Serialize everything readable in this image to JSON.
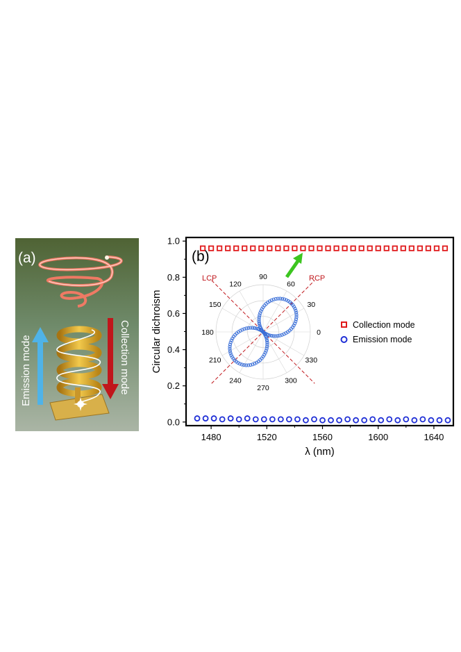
{
  "panel_a": {
    "label": "(a)",
    "emission_label": "Emission mode",
    "collection_label": "Collection mode",
    "colors": {
      "emission_arrow": "#4fb3e8",
      "collection_arrow": "#c0161b",
      "helix": "#d9a51f",
      "spiral": "#ff6a55"
    }
  },
  "chart_data": {
    "type": "scatter",
    "panel_label": "(b)",
    "xlabel": "λ (nm)",
    "ylabel": "Circular dichroism",
    "xlim": [
      1462,
      1654
    ],
    "ylim": [
      -0.02,
      1.02
    ],
    "xticks": [
      1480,
      1520,
      1560,
      1600,
      1640
    ],
    "yticks": [
      0.0,
      0.2,
      0.4,
      0.6,
      0.8,
      1.0
    ],
    "xtick_labels": [
      "1480",
      "1520",
      "1560",
      "1600",
      "1640"
    ],
    "ytick_labels": [
      "0.0",
      "0.2",
      "0.4",
      "0.6",
      "0.8",
      "1.0"
    ],
    "legend_position": "right",
    "series": [
      {
        "name": "Collection mode",
        "marker": "square",
        "color": "#e0191b",
        "x": [
          1474,
          1480,
          1486,
          1492,
          1498,
          1504,
          1510,
          1516,
          1522,
          1528,
          1534,
          1540,
          1546,
          1552,
          1558,
          1564,
          1570,
          1576,
          1582,
          1588,
          1594,
          1600,
          1606,
          1612,
          1618,
          1624,
          1630,
          1636,
          1642,
          1648
        ],
        "y": [
          0.96,
          0.96,
          0.96,
          0.96,
          0.96,
          0.96,
          0.96,
          0.96,
          0.96,
          0.96,
          0.96,
          0.96,
          0.96,
          0.96,
          0.96,
          0.96,
          0.96,
          0.96,
          0.96,
          0.96,
          0.96,
          0.96,
          0.96,
          0.96,
          0.96,
          0.96,
          0.96,
          0.96,
          0.96,
          0.96
        ]
      },
      {
        "name": "Emission mode",
        "marker": "circle",
        "color": "#1f2fd6",
        "x": [
          1470,
          1476,
          1482,
          1488,
          1494,
          1500,
          1506,
          1512,
          1518,
          1524,
          1530,
          1536,
          1542,
          1548,
          1554,
          1560,
          1566,
          1572,
          1578,
          1584,
          1590,
          1596,
          1602,
          1608,
          1614,
          1620,
          1626,
          1632,
          1638,
          1644,
          1650
        ],
        "y": [
          0.02,
          0.02,
          0.02,
          0.015,
          0.02,
          0.015,
          0.02,
          0.015,
          0.015,
          0.015,
          0.015,
          0.015,
          0.015,
          0.01,
          0.015,
          0.01,
          0.01,
          0.01,
          0.015,
          0.01,
          0.01,
          0.015,
          0.01,
          0.015,
          0.01,
          0.015,
          0.01,
          0.015,
          0.01,
          0.01,
          0.01
        ]
      }
    ],
    "inset": {
      "type": "polar",
      "angle_labels": [
        "0",
        "30",
        "60",
        "90",
        "120",
        "150",
        "180",
        "210",
        "240",
        "270",
        "300",
        "330"
      ],
      "lcp_label": "LCP",
      "rcp_label": "RCP",
      "pattern": "two-lobe rose along 45°/225°",
      "color": "#3a6fd8",
      "axis_color": "#c0161b"
    }
  }
}
